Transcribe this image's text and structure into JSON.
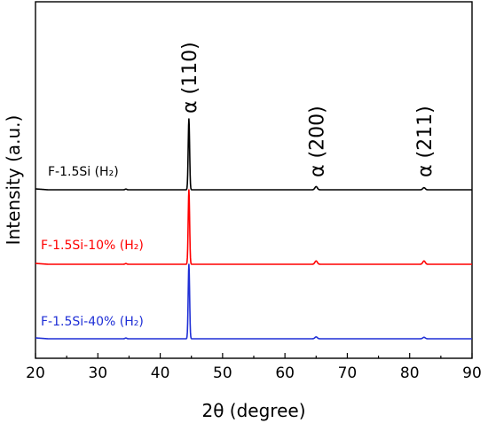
{
  "chart_data": {
    "type": "line",
    "xlabel": "2θ (degree)",
    "ylabel": "Intensity (a.u.)",
    "xlim": [
      20,
      90
    ],
    "xticks": [
      20,
      30,
      40,
      50,
      60,
      70,
      80,
      90
    ],
    "y_ticks_shown": false,
    "grid": false,
    "peaks": [
      {
        "label": "α (110)",
        "x": 44.6
      },
      {
        "label": "α (200)",
        "x": 65.0
      },
      {
        "label": "α (211)",
        "x": 82.3
      }
    ],
    "series": [
      {
        "name": "F-1.5Si (H₂)",
        "color": "#000000",
        "baseline": 2.0,
        "peak_heights": [
          1.0,
          0.045,
          0.03
        ]
      },
      {
        "name": "F-1.5Si-10% (H₂)",
        "color": "#ff0000",
        "baseline": 1.0,
        "peak_heights": [
          1.0,
          0.045,
          0.045
        ]
      },
      {
        "name": "F-1.5Si-40% (H₂)",
        "color": "#1f2fd6",
        "baseline": 0.0,
        "peak_heights": [
          1.0,
          0.025,
          0.02
        ]
      }
    ]
  }
}
